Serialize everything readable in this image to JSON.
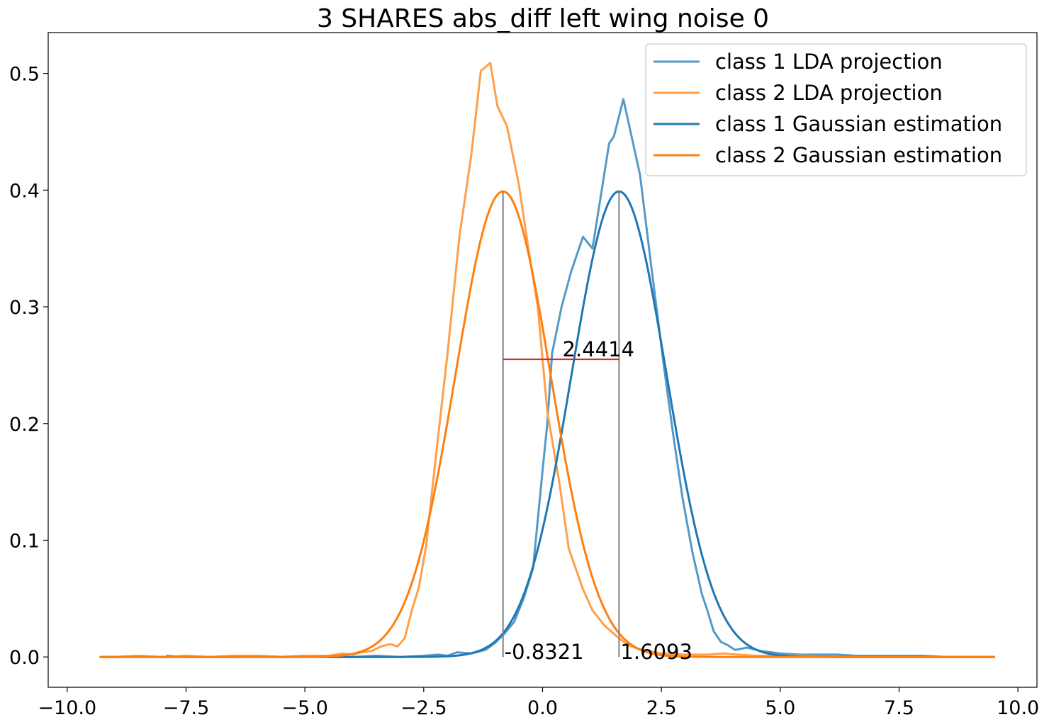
{
  "chart_data": {
    "type": "line",
    "title": "3 SHARES abs_diff left wing noise 0",
    "xlabel": "",
    "ylabel": "",
    "xlim": [
      -10.4,
      10.4
    ],
    "ylim": [
      -0.026,
      0.535
    ],
    "xticks": [
      -10.0,
      -7.5,
      -5.0,
      -2.5,
      0.0,
      2.5,
      5.0,
      7.5,
      10.0
    ],
    "xtick_labels": [
      "−10.0",
      "−7.5",
      "−5.0",
      "−2.5",
      "0.0",
      "2.5",
      "5.0",
      "7.5",
      "10.0"
    ],
    "yticks": [
      0.0,
      0.1,
      0.2,
      0.3,
      0.4,
      0.5
    ],
    "ytick_labels": [
      "0.0",
      "0.1",
      "0.2",
      "0.3",
      "0.4",
      "0.5"
    ],
    "grid": false,
    "legend_position": "top-right",
    "series": [
      {
        "name": "class 1 LDA projection",
        "color": "#5499c7",
        "kind": "empirical",
        "x": [
          -7.9,
          -7.5,
          -7.0,
          -6.5,
          -6.0,
          -5.5,
          -5.0,
          -4.5,
          -4.0,
          -3.5,
          -3.0,
          -2.5,
          -2.2,
          -2.0,
          -1.8,
          -1.5,
          -1.2,
          -1.0,
          -0.8,
          -0.6,
          -0.4,
          -0.2,
          0.0,
          0.1,
          0.2,
          0.4,
          0.6,
          0.85,
          1.05,
          1.4,
          1.5,
          1.7,
          2.05,
          2.3,
          2.55,
          2.75,
          2.95,
          3.15,
          3.35,
          3.45,
          3.6,
          3.75,
          3.9,
          4.05,
          4.3,
          4.6,
          5.0,
          5.4,
          5.8,
          6.2,
          6.6,
          7.0,
          7.5,
          8.0,
          8.5,
          8.8
        ],
        "y": [
          0.001,
          0.0,
          0.0,
          0.0,
          0.001,
          0.0,
          0.001,
          0.0,
          0.0,
          0.001,
          0.0,
          0.001,
          0.002,
          0.001,
          0.004,
          0.003,
          0.006,
          0.012,
          0.02,
          0.03,
          0.05,
          0.076,
          0.16,
          0.2,
          0.26,
          0.3,
          0.33,
          0.36,
          0.35,
          0.44,
          0.446,
          0.478,
          0.413,
          0.33,
          0.25,
          0.19,
          0.135,
          0.09,
          0.054,
          0.042,
          0.022,
          0.013,
          0.01,
          0.006,
          0.008,
          0.005,
          0.003,
          0.002,
          0.002,
          0.002,
          0.001,
          0.001,
          0.001,
          0.001,
          0.0,
          0.0
        ]
      },
      {
        "name": "class 2 LDA projection",
        "color": "#ff9f4a",
        "kind": "empirical",
        "x": [
          -9.3,
          -9.0,
          -8.5,
          -8.0,
          -7.5,
          -7.0,
          -6.5,
          -6.0,
          -5.5,
          -5.0,
          -4.5,
          -4.2,
          -4.0,
          -3.8,
          -3.6,
          -3.4,
          -3.2,
          -3.05,
          -2.9,
          -2.75,
          -2.6,
          -2.45,
          -2.25,
          -2.0,
          -1.75,
          -1.5,
          -1.3,
          -1.1,
          -0.95,
          -0.75,
          -0.5,
          -0.3,
          -0.1,
          0.1,
          0.35,
          0.55,
          0.85,
          1.05,
          1.3,
          1.55,
          1.8,
          2.1,
          2.5,
          3.0,
          3.5,
          3.8,
          4.1,
          4.5,
          5.0,
          5.5,
          6.0,
          7.0,
          8.0,
          9.0,
          9.5
        ],
        "y": [
          0.0,
          0.0,
          0.001,
          0.0,
          0.001,
          0.0,
          0.001,
          0.001,
          0.0,
          0.001,
          0.001,
          0.003,
          0.002,
          0.004,
          0.005,
          0.009,
          0.011,
          0.009,
          0.016,
          0.04,
          0.06,
          0.095,
          0.17,
          0.26,
          0.36,
          0.43,
          0.502,
          0.509,
          0.472,
          0.455,
          0.405,
          0.35,
          0.3,
          0.21,
          0.15,
          0.093,
          0.058,
          0.04,
          0.027,
          0.018,
          0.01,
          0.006,
          0.003,
          0.002,
          0.002,
          0.003,
          0.002,
          0.001,
          0.001,
          0.001,
          0.0,
          0.0,
          0.0,
          0.0,
          0.0
        ]
      },
      {
        "name": "class 1 Gaussian estimation",
        "color": "#1f77b4",
        "kind": "gaussian",
        "mean": 1.6093,
        "std": 1.0,
        "x_range": [
          -9.3,
          9.5
        ]
      },
      {
        "name": "class 2 Gaussian estimation",
        "color": "#ff7f0e",
        "kind": "gaussian",
        "mean": -0.8321,
        "std": 1.0,
        "x_range": [
          -9.3,
          9.5
        ]
      }
    ],
    "annotations": {
      "mean_lines": [
        {
          "x": -0.8321,
          "y_top": 0.399,
          "label": "-0.8321"
        },
        {
          "x": 1.6093,
          "y_top": 0.399,
          "label": "1.6093"
        }
      ],
      "distance": {
        "x1": -0.8321,
        "x2": 1.6093,
        "y": 0.255,
        "label": "2.4414",
        "color": "#d62728"
      },
      "mean_line_color": "#808080"
    }
  }
}
